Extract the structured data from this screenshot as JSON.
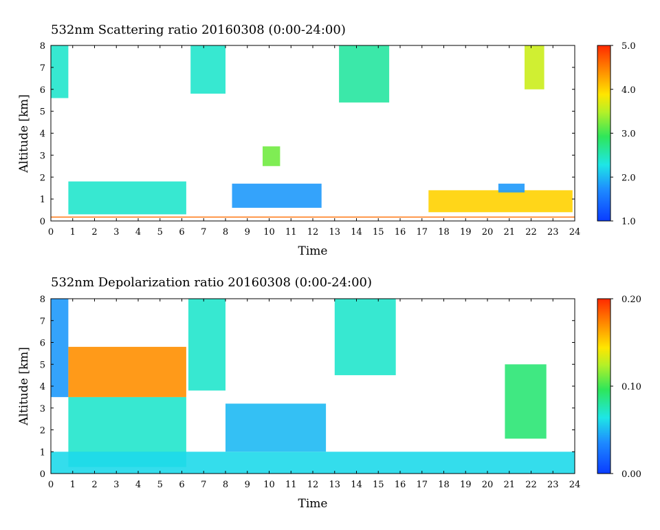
{
  "chart_data": [
    {
      "type": "heatmap",
      "title": "532nm Scattering ratio  20160308 (0:00-24:00)",
      "xlabel": "Time",
      "ylabel": "Altitude [km]",
      "xlim": [
        0,
        24
      ],
      "ylim": [
        0,
        8
      ],
      "x_ticks": [
        "0",
        "1",
        "2",
        "3",
        "4",
        "5",
        "6",
        "7",
        "8",
        "9",
        "10",
        "11",
        "12",
        "13",
        "14",
        "15",
        "16",
        "17",
        "18",
        "19",
        "20",
        "21",
        "22",
        "23",
        "24"
      ],
      "y_ticks": [
        "0",
        "1",
        "2",
        "3",
        "4",
        "5",
        "6",
        "7",
        "8"
      ],
      "colorbar": {
        "min": 1.0,
        "max": 5.0,
        "labels": [
          "1.0",
          "2.0",
          "3.0",
          "4.0",
          "5.0"
        ],
        "low_color": "#0a3cff",
        "high_color": "#ff2a00"
      },
      "regions": [
        {
          "t0": 0.0,
          "t1": 0.8,
          "z0": 5.6,
          "z1": 8.0,
          "value": 2.4
        },
        {
          "t0": 6.4,
          "t1": 8.0,
          "z0": 5.8,
          "z1": 8.0,
          "value": 2.4
        },
        {
          "t0": 13.2,
          "t1": 15.5,
          "z0": 5.4,
          "z1": 8.0,
          "value": 2.6
        },
        {
          "t0": 21.7,
          "t1": 22.6,
          "z0": 6.0,
          "z1": 8.0,
          "value": 3.6
        },
        {
          "t0": 0.8,
          "t1": 6.2,
          "z0": 0.3,
          "z1": 1.8,
          "value": 2.4
        },
        {
          "t0": 8.3,
          "t1": 12.4,
          "z0": 0.6,
          "z1": 1.7,
          "value": 1.8
        },
        {
          "t0": 9.7,
          "t1": 10.5,
          "z0": 2.5,
          "z1": 3.4,
          "value": 3.2
        },
        {
          "t0": 17.3,
          "t1": 23.9,
          "z0": 0.4,
          "z1": 1.4,
          "value": 4.0
        },
        {
          "t0": 20.5,
          "t1": 21.7,
          "z0": 1.3,
          "z1": 1.7,
          "value": 1.8
        },
        {
          "t0": 0.0,
          "t1": 24.0,
          "z0": 0.15,
          "z1": 0.2,
          "value": 4.6
        }
      ]
    },
    {
      "type": "heatmap",
      "title": "532nm Depolarization ratio  20160308 (0:00-24:00)",
      "xlabel": "Time",
      "ylabel": "Altitude [km]",
      "xlim": [
        0,
        24
      ],
      "ylim": [
        0,
        8
      ],
      "x_ticks": [
        "0",
        "1",
        "2",
        "3",
        "4",
        "5",
        "6",
        "7",
        "8",
        "9",
        "10",
        "11",
        "12",
        "13",
        "14",
        "15",
        "16",
        "17",
        "18",
        "19",
        "20",
        "21",
        "22",
        "23",
        "24"
      ],
      "y_ticks": [
        "0",
        "1",
        "2",
        "3",
        "4",
        "5",
        "6",
        "7",
        "8"
      ],
      "colorbar": {
        "min": 0.0,
        "max": 0.2,
        "labels": [
          "0.00",
          "0.10",
          "0.20"
        ],
        "low_color": "#0a3cff",
        "high_color": "#ff2a00"
      },
      "regions": [
        {
          "t0": 0.0,
          "t1": 0.8,
          "z0": 3.5,
          "z1": 8.0,
          "value": 0.04
        },
        {
          "t0": 0.8,
          "t1": 6.2,
          "z0": 0.3,
          "z1": 3.5,
          "value": 0.07
        },
        {
          "t0": 0.8,
          "t1": 6.2,
          "z0": 3.5,
          "z1": 5.8,
          "value": 0.17
        },
        {
          "t0": 6.3,
          "t1": 8.0,
          "z0": 3.8,
          "z1": 8.0,
          "value": 0.07
        },
        {
          "t0": 8.0,
          "t1": 12.6,
          "z0": 1.0,
          "z1": 3.2,
          "value": 0.05
        },
        {
          "t0": 13.0,
          "t1": 15.8,
          "z0": 4.5,
          "z1": 8.0,
          "value": 0.07
        },
        {
          "t0": 20.8,
          "t1": 22.7,
          "z0": 1.6,
          "z1": 5.0,
          "value": 0.09
        },
        {
          "t0": 0.0,
          "t1": 24.0,
          "z0": 0.0,
          "z1": 1.0,
          "value": 0.06
        }
      ]
    }
  ]
}
